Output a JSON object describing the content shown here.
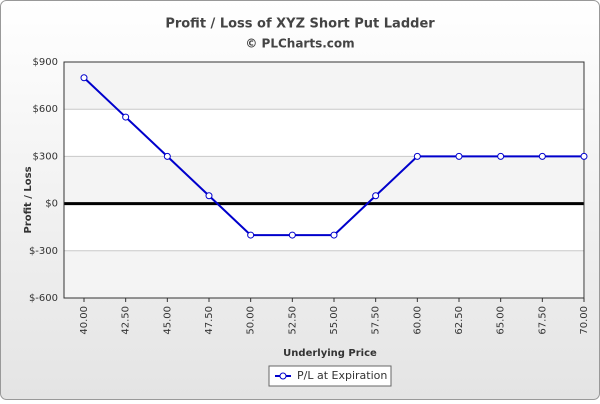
{
  "chart_data": {
    "type": "line",
    "title": "Profit / Loss of XYZ Short Put Ladder",
    "subtitle": "© PLCharts.com",
    "x_label": "Underlying Price",
    "y_label": "Profit / Loss",
    "categories": [
      "40.00",
      "42.50",
      "45.00",
      "47.50",
      "50.00",
      "52.50",
      "55.00",
      "57.50",
      "60.00",
      "62.50",
      "65.00",
      "67.50",
      "70.00"
    ],
    "series": [
      {
        "name": "P/L at Expiration",
        "color": "#0000cc",
        "values": [
          800,
          550,
          300,
          50,
          -200,
          -200,
          -200,
          50,
          300,
          300,
          300,
          300,
          300
        ]
      }
    ],
    "ylim": [
      -600,
      900
    ],
    "yticks": [
      {
        "value": -600,
        "label": "$-600"
      },
      {
        "value": -300,
        "label": "$-300"
      },
      {
        "value": 0,
        "label": "$0"
      },
      {
        "value": 300,
        "label": "$300"
      },
      {
        "value": 600,
        "label": "$600"
      },
      {
        "value": 900,
        "label": "$900"
      }
    ],
    "grid": true,
    "legend": "bottom"
  }
}
